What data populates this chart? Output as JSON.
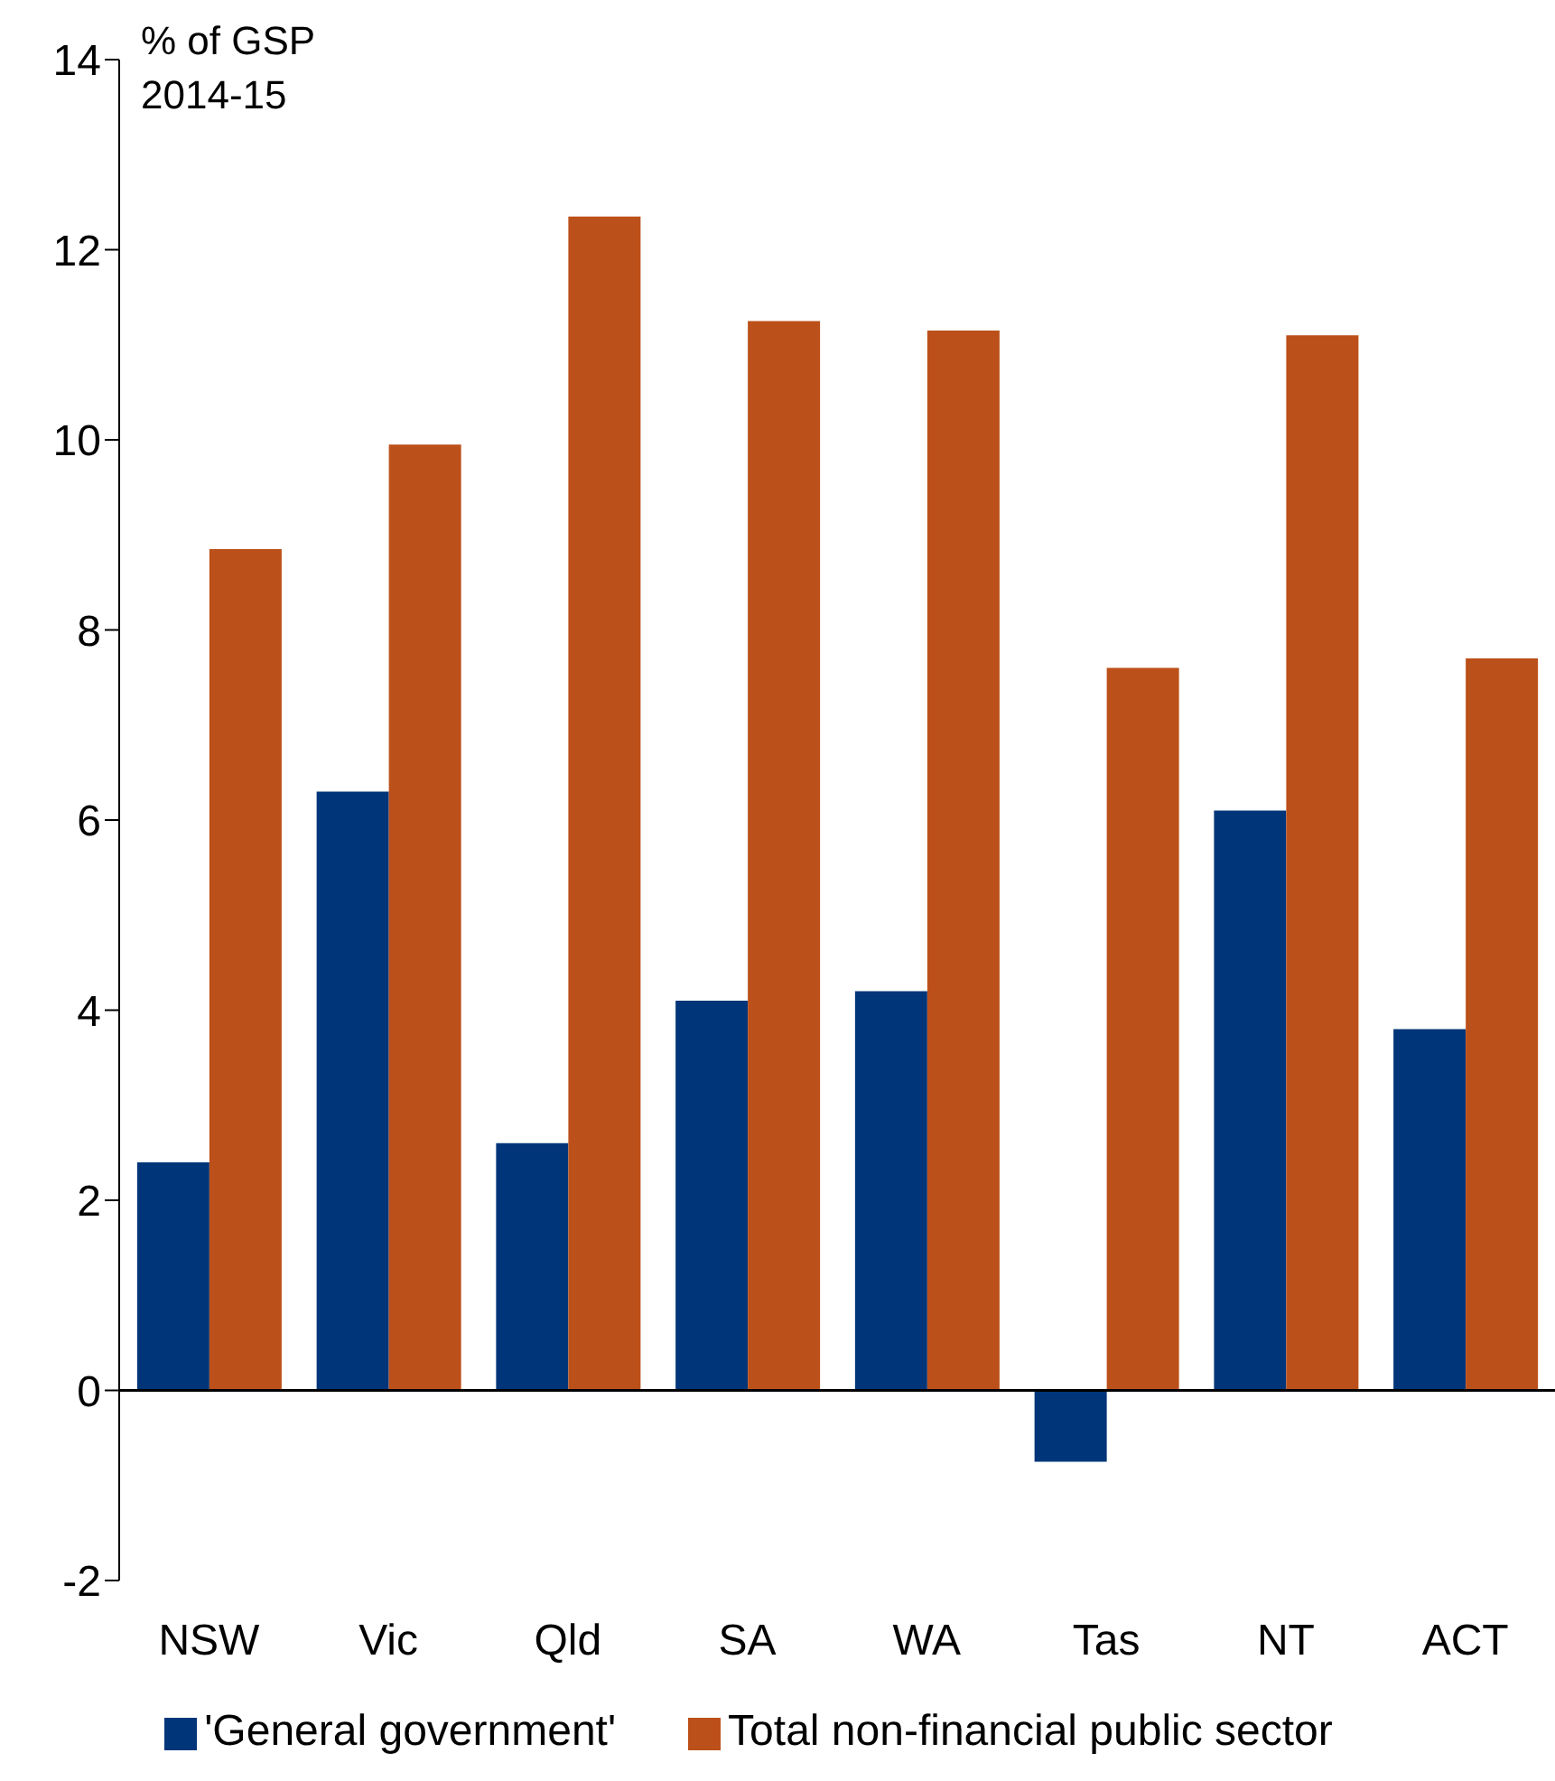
{
  "chart_data": {
    "type": "bar",
    "ylabel": "% of GSP 2014-15",
    "categories": [
      "NSW",
      "Vic",
      "Qld",
      "SA",
      "WA",
      "Tas",
      "NT",
      "ACT"
    ],
    "series": [
      {
        "name": "'General government'",
        "color": "#003679",
        "values": [
          2.4,
          6.3,
          2.6,
          4.1,
          4.2,
          -0.75,
          6.1,
          3.8
        ]
      },
      {
        "name": "Total non-financial public sector",
        "color": "#bc501a",
        "values": [
          8.85,
          9.95,
          12.35,
          11.25,
          11.15,
          7.6,
          11.1,
          7.7
        ]
      }
    ],
    "ylim": [
      -2,
      14
    ],
    "yticks": [
      -2,
      0,
      2,
      4,
      6,
      8,
      10,
      12,
      14
    ],
    "legend": "bottom"
  }
}
